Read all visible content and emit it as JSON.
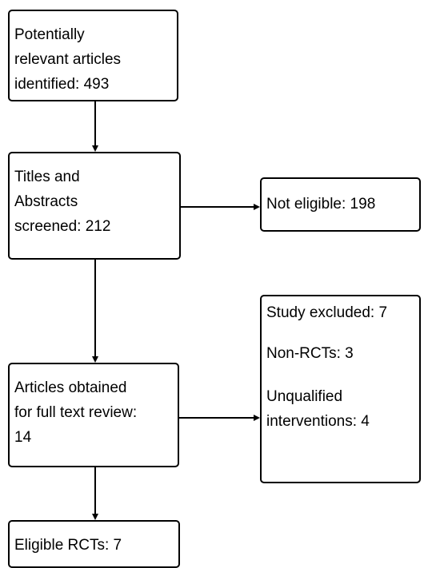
{
  "diagram": {
    "boxes": {
      "identified": {
        "lines": [
          "Potentially",
          "relevant articles",
          "identified: 493"
        ]
      },
      "screened": {
        "lines": [
          "Titles and",
          "Abstracts",
          "screened: 212"
        ]
      },
      "not_eligible": {
        "lines": [
          "Not eligible: 198"
        ]
      },
      "full_text": {
        "lines": [
          "Articles obtained",
          "for full text review:",
          "14"
        ]
      },
      "excluded": {
        "lines": [
          "Study excluded: 7",
          "Non-RCTs: 3",
          "Unqualified",
          "interventions: 4"
        ]
      },
      "eligible": {
        "lines": [
          "Eligible RCTs: 7"
        ]
      }
    },
    "colors": {
      "stroke": "#000000",
      "background": "#ffffff"
    }
  }
}
